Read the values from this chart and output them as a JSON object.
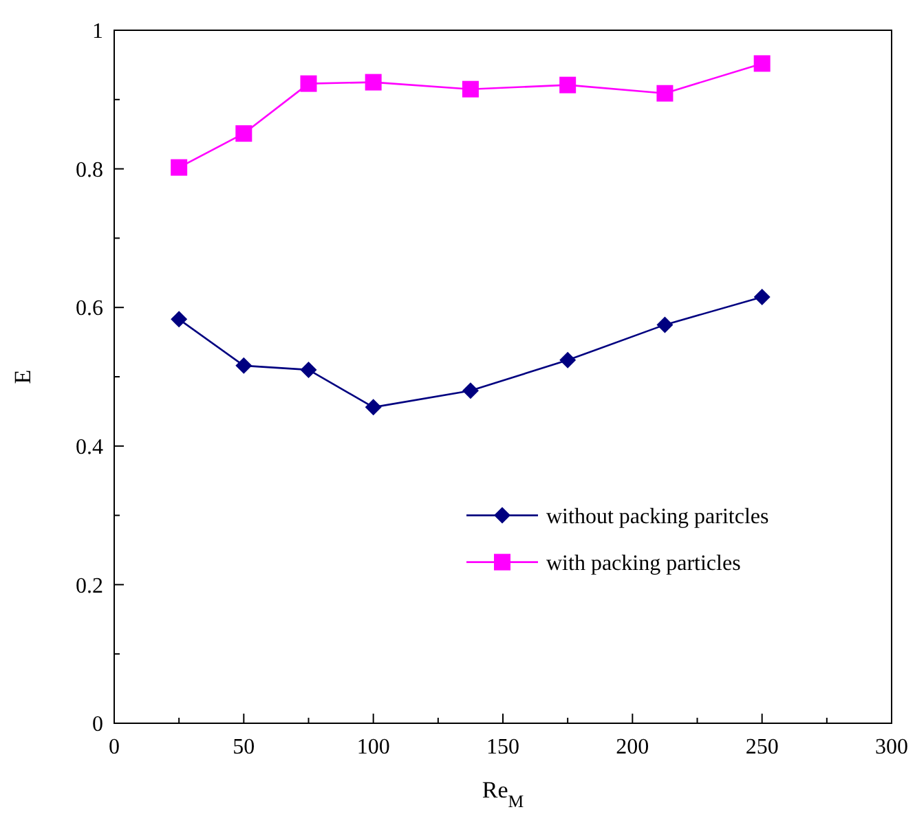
{
  "chart_data": {
    "type": "line",
    "xlabel": "Re$_{M}$",
    "ylabel": "E",
    "x": [
      25,
      50,
      75,
      100,
      137.5,
      175,
      212.5,
      250
    ],
    "series": [
      {
        "name": "without packing paritcles",
        "color": "#000080",
        "marker": "diamond",
        "values": [
          0.583,
          0.516,
          0.51,
          0.456,
          0.48,
          0.524,
          0.575,
          0.615
        ]
      },
      {
        "name": "with packing particles",
        "color": "#ff00ff",
        "marker": "square",
        "values": [
          0.802,
          0.851,
          0.923,
          0.925,
          0.915,
          0.921,
          0.909,
          0.952
        ]
      }
    ],
    "xlim": [
      0,
      300
    ],
    "xticks": [
      0,
      {
        "value": 25,
        "label": null
      },
      50,
      {
        "value": 75,
        "label": null
      },
      100,
      {
        "value": 125,
        "label": null
      },
      150,
      {
        "value": 175,
        "label": null
      },
      200,
      {
        "value": 225,
        "label": null
      },
      250,
      {
        "value": 275,
        "label": null
      },
      300
    ],
    "ylim": [
      0,
      1
    ],
    "yticks": [
      0,
      {
        "value": 0.1,
        "label": null
      },
      0.2,
      {
        "value": 0.3,
        "label": null
      },
      0.4,
      {
        "value": 0.5,
        "label": null
      },
      0.6,
      {
        "value": 0.7,
        "label": null
      },
      0.8,
      {
        "value": 0.9,
        "label": null
      },
      1
    ],
    "legend": "center",
    "grid": false
  }
}
